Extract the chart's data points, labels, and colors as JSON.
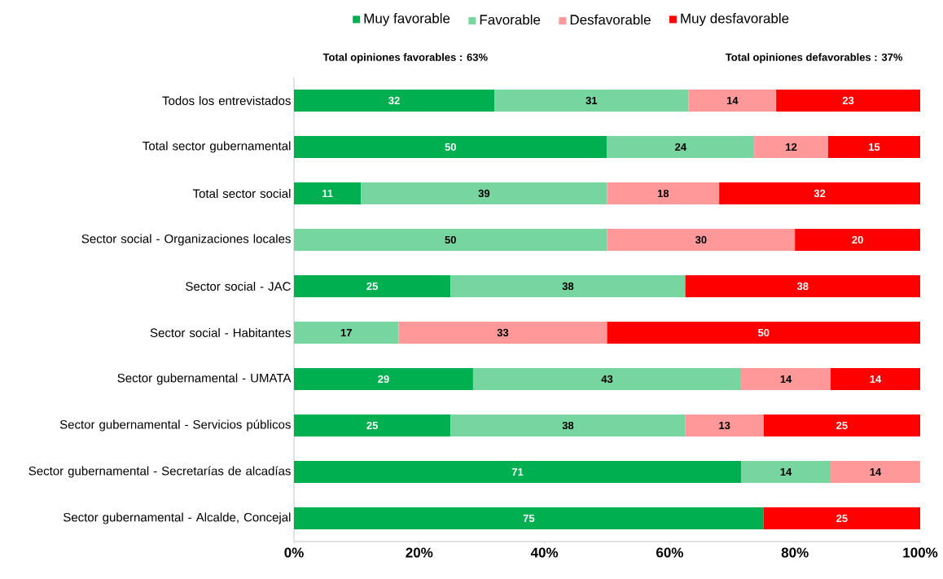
{
  "chart_data": {
    "type": "bar",
    "orientation": "horizontal",
    "stacked": true,
    "legend": "top",
    "categories": [
      "Todos los entrevistados",
      "Total sector gubernamental",
      "Total sector social",
      "Sector social - Organizaciones locales",
      "Sector social - JAC",
      "Sector social - Habitantes",
      "Sector gubernamental - UMATA",
      "Sector gubernamental - Servicios públicos",
      "Sector gubernamental - Secretarías de alcadías",
      "Sector gubernamental - Alcalde, Concejal"
    ],
    "series": [
      {
        "name": "Muy favorable",
        "color": "#00b050",
        "values": [
          32,
          50,
          10.7,
          null,
          25,
          null,
          28.6,
          25,
          71.4,
          75
        ],
        "value_labels": [
          "32",
          "50",
          "11",
          null,
          "25",
          null,
          "29",
          "25",
          "71",
          "75"
        ]
      },
      {
        "name": "Favorable",
        "color": "#77d59f",
        "values": [
          31,
          23.5,
          39.3,
          50,
          37.5,
          16.7,
          42.8,
          37.5,
          14.3,
          null
        ],
        "value_labels": [
          "31",
          "24",
          "39",
          "50",
          "38",
          "17",
          "43",
          "38",
          "14",
          null
        ]
      },
      {
        "name": "Desfavorable",
        "color": "#ff9999",
        "values": [
          14,
          11.8,
          17.9,
          30,
          null,
          33.3,
          14.3,
          12.5,
          14.3,
          null
        ],
        "value_labels": [
          "14",
          "12",
          "18",
          "30",
          null,
          "33",
          "14",
          "13",
          "14",
          null
        ]
      },
      {
        "name": "Muy desfavorable",
        "color": "#ff0000",
        "values": [
          23,
          14.7,
          32.1,
          20,
          37.5,
          50,
          14.3,
          25,
          null,
          25
        ],
        "value_labels": [
          "23",
          "15",
          "32",
          "20",
          "38",
          "50",
          "14",
          "25",
          null,
          "25"
        ]
      }
    ],
    "xlim": [
      0,
      100
    ],
    "xticks": [
      {
        "value": 0,
        "label": "0%"
      },
      {
        "value": 20,
        "label": "20%"
      },
      {
        "value": 40,
        "label": "40%"
      },
      {
        "value": 60,
        "label": "60%"
      },
      {
        "value": 80,
        "label": "80%"
      },
      {
        "value": 100,
        "label": "100%"
      }
    ],
    "annotations": [
      "Total opiniones favorables : 63%",
      "Total opiniones defavorables : 37%"
    ]
  }
}
